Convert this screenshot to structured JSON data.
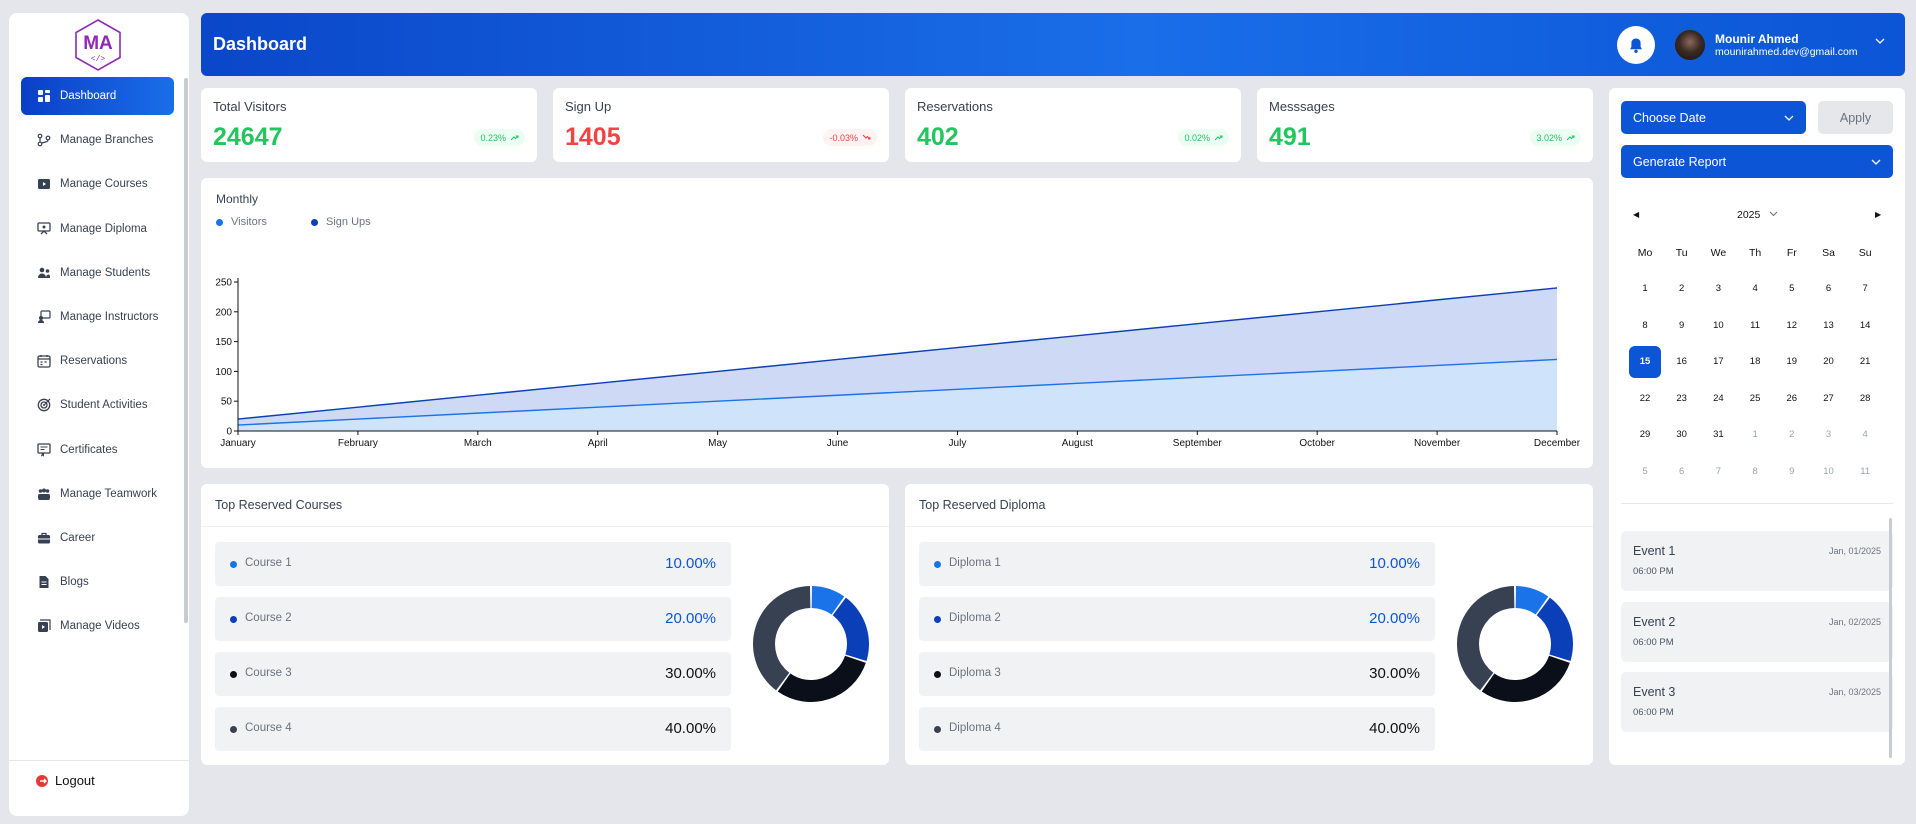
{
  "sidebar": {
    "logo_text": "MA",
    "items": [
      {
        "label": "Dashboard",
        "icon": "dashboard-icon",
        "active": true
      },
      {
        "label": "Manage Branches",
        "icon": "branch-icon"
      },
      {
        "label": "Manage Courses",
        "icon": "video-icon"
      },
      {
        "label": "Manage Diploma",
        "icon": "diploma-icon"
      },
      {
        "label": "Manage Students",
        "icon": "students-icon"
      },
      {
        "label": "Manage Instructors",
        "icon": "instructor-icon"
      },
      {
        "label": "Reservations",
        "icon": "reservations-icon"
      },
      {
        "label": "Student Activities",
        "icon": "target-icon"
      },
      {
        "label": "Certificates",
        "icon": "certificate-icon"
      },
      {
        "label": "Manage Teamwork",
        "icon": "team-icon"
      },
      {
        "label": "Career",
        "icon": "briefcase-icon"
      },
      {
        "label": "Blogs",
        "icon": "document-icon"
      },
      {
        "label": "Manage Videos",
        "icon": "videos-icon"
      }
    ],
    "logout_label": "Logout"
  },
  "header": {
    "title": "Dashboard",
    "user_name": "Mounir Ahmed",
    "user_email": "mounirahmed.dev@gmail.com"
  },
  "stats": [
    {
      "label": "Total Visitors",
      "value": "24647",
      "change": "0.23%",
      "trend": "up",
      "color": "#22c55e"
    },
    {
      "label": "Sign Up",
      "value": "1405",
      "change": "-0.03%",
      "trend": "down",
      "color": "#ef4444"
    },
    {
      "label": "Reservations",
      "value": "402",
      "change": "0.02%",
      "trend": "up",
      "color": "#22c55e"
    },
    {
      "label": "Messsages",
      "value": "491",
      "change": "3.02%",
      "trend": "up",
      "color": "#22c55e"
    }
  ],
  "chart_data": {
    "type": "area",
    "title": "Monthly",
    "categories": [
      "January",
      "February",
      "March",
      "April",
      "May",
      "June",
      "July",
      "August",
      "September",
      "October",
      "November",
      "December"
    ],
    "series": [
      {
        "name": "Visitors",
        "color": "#1a73e8",
        "values": [
          10,
          20,
          30,
          40,
          50,
          60,
          70,
          80,
          90,
          100,
          110,
          120
        ]
      },
      {
        "name": "Sign Ups",
        "color": "#0a3fb8",
        "values": [
          20,
          40,
          60,
          80,
          100,
          120,
          140,
          160,
          180,
          200,
          220,
          240
        ]
      }
    ],
    "yticks": [
      0,
      50,
      100,
      150,
      200,
      250
    ],
    "ylim": [
      0,
      250
    ],
    "grid": false,
    "legend": "top-left"
  },
  "courses_panel": {
    "title": "Top Reserved Courses",
    "rows": [
      {
        "label": "Course 1",
        "value": "10.00%",
        "pct": 10,
        "color": "#1a73e8"
      },
      {
        "label": "Course 2",
        "value": "20.00%",
        "pct": 20,
        "color": "#0a3fb8"
      },
      {
        "label": "Course 3",
        "value": "30.00%",
        "pct": 30,
        "color": "#0b0f19"
      },
      {
        "label": "Course 4",
        "value": "40.00%",
        "pct": 40,
        "color": "#374151"
      }
    ]
  },
  "diploma_panel": {
    "title": "Top Reserved Diploma",
    "rows": [
      {
        "label": "Diploma 1",
        "value": "10.00%",
        "pct": 10,
        "color": "#1a73e8"
      },
      {
        "label": "Diploma 2",
        "value": "20.00%",
        "pct": 20,
        "color": "#0a3fb8"
      },
      {
        "label": "Diploma 3",
        "value": "30.00%",
        "pct": 30,
        "color": "#0b0f19"
      },
      {
        "label": "Diploma 4",
        "value": "40.00%",
        "pct": 40,
        "color": "#374151"
      }
    ]
  },
  "controls": {
    "choose_date_label": "Choose Date",
    "apply_label": "Apply",
    "generate_report_label": "Generate Report"
  },
  "calendar": {
    "year": "2025",
    "weekdays": [
      "Mo",
      "Tu",
      "We",
      "Th",
      "Fr",
      "Sa",
      "Su"
    ],
    "days": [
      [
        "1",
        "2",
        "3",
        "4",
        "5",
        "6",
        "7"
      ],
      [
        "8",
        "9",
        "10",
        "11",
        "12",
        "13",
        "14"
      ],
      [
        "15",
        "16",
        "17",
        "18",
        "19",
        "20",
        "21"
      ],
      [
        "22",
        "23",
        "24",
        "25",
        "26",
        "27",
        "28"
      ],
      [
        "29",
        "30",
        "31",
        "1",
        "2",
        "3",
        "4"
      ],
      [
        "5",
        "6",
        "7",
        "8",
        "9",
        "10",
        "11"
      ]
    ],
    "selected": "15"
  },
  "events": [
    {
      "name": "Event 1",
      "date": "Jan, 01/2025",
      "time": "06:00 PM"
    },
    {
      "name": "Event 2",
      "date": "Jan, 02/2025",
      "time": "06:00 PM"
    },
    {
      "name": "Event 3",
      "date": "Jan, 03/2025",
      "time": "06:00 PM"
    }
  ]
}
